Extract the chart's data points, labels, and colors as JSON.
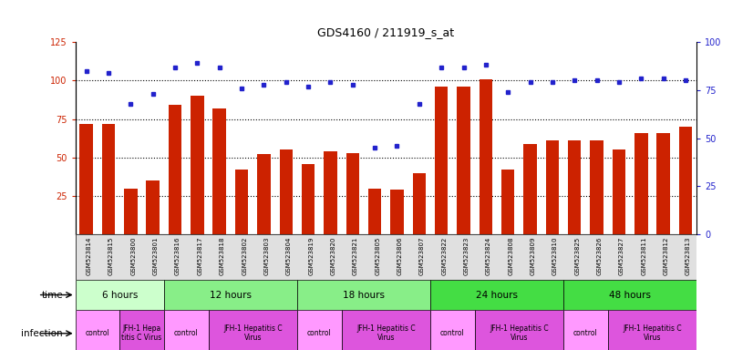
{
  "title": "GDS4160 / 211919_s_at",
  "samples": [
    "GSM523814",
    "GSM523815",
    "GSM523800",
    "GSM523801",
    "GSM523816",
    "GSM523817",
    "GSM523818",
    "GSM523802",
    "GSM523803",
    "GSM523804",
    "GSM523819",
    "GSM523820",
    "GSM523821",
    "GSM523805",
    "GSM523806",
    "GSM523807",
    "GSM523822",
    "GSM523823",
    "GSM523824",
    "GSM523808",
    "GSM523809",
    "GSM523810",
    "GSM523825",
    "GSM523826",
    "GSM523827",
    "GSM523811",
    "GSM523812",
    "GSM523813"
  ],
  "counts": [
    72,
    72,
    30,
    35,
    84,
    90,
    82,
    42,
    52,
    55,
    46,
    54,
    53,
    30,
    29,
    40,
    96,
    96,
    101,
    42,
    59,
    61,
    61,
    61,
    55,
    66,
    66,
    70
  ],
  "percentiles": [
    85,
    84,
    68,
    73,
    87,
    89,
    87,
    76,
    78,
    79,
    77,
    79,
    78,
    45,
    46,
    68,
    87,
    87,
    88,
    74,
    79,
    79,
    80,
    80,
    79,
    81,
    81,
    80
  ],
  "ylim_left": [
    0,
    125
  ],
  "ylim_right": [
    0,
    100
  ],
  "yticks_left": [
    25,
    50,
    75,
    100,
    125
  ],
  "yticks_right": [
    0,
    25,
    50,
    75,
    100
  ],
  "dotted_yticks": [
    25,
    50,
    75,
    100
  ],
  "bar_color": "#cc2200",
  "dot_color": "#2222cc",
  "title_fontsize": 9,
  "axis_label_color_left": "#cc2200",
  "axis_label_color_right": "#2222cc",
  "time_groups": [
    {
      "label": "6 hours",
      "start": 0,
      "end": 4,
      "color": "#ccffcc"
    },
    {
      "label": "12 hours",
      "start": 4,
      "end": 10,
      "color": "#88ee88"
    },
    {
      "label": "18 hours",
      "start": 10,
      "end": 16,
      "color": "#88ee88"
    },
    {
      "label": "24 hours",
      "start": 16,
      "end": 22,
      "color": "#44dd44"
    },
    {
      "label": "48 hours",
      "start": 22,
      "end": 28,
      "color": "#44dd44"
    }
  ],
  "infection_groups": [
    {
      "label": "control",
      "start": 0,
      "end": 2,
      "color": "#ff99ff"
    },
    {
      "label": "JFH-1 Hepa\ntitis C Virus",
      "start": 2,
      "end": 4,
      "color": "#dd55dd"
    },
    {
      "label": "control",
      "start": 4,
      "end": 6,
      "color": "#ff99ff"
    },
    {
      "label": "JFH-1 Hepatitis C\nVirus",
      "start": 6,
      "end": 10,
      "color": "#dd55dd"
    },
    {
      "label": "control",
      "start": 10,
      "end": 12,
      "color": "#ff99ff"
    },
    {
      "label": "JFH-1 Hepatitis C\nVirus",
      "start": 12,
      "end": 16,
      "color": "#dd55dd"
    },
    {
      "label": "control",
      "start": 16,
      "end": 18,
      "color": "#ff99ff"
    },
    {
      "label": "JFH-1 Hepatitis C\nVirus",
      "start": 18,
      "end": 22,
      "color": "#dd55dd"
    },
    {
      "label": "control",
      "start": 22,
      "end": 24,
      "color": "#ff99ff"
    },
    {
      "label": "JFH-1 Hepatitis C\nVirus",
      "start": 24,
      "end": 28,
      "color": "#dd55dd"
    }
  ]
}
